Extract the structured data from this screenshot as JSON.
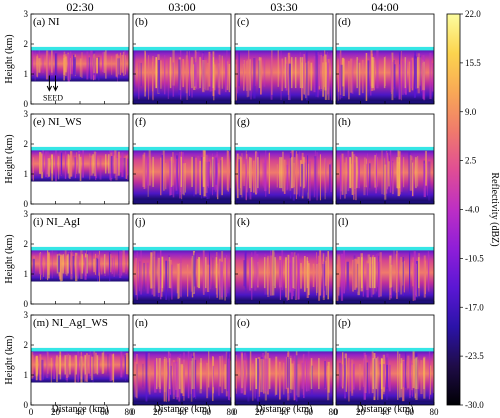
{
  "figure": {
    "times": [
      "02:30",
      "03:00",
      "03:30",
      "04:00"
    ],
    "y_label": "Height (km)",
    "x_label": "Distance (km)",
    "seed_label": "SEED",
    "colorbar_label": "Reflectivity (dBZ)"
  },
  "chart_data": {
    "type": "heatmap",
    "rows": [
      "NI",
      "NI_WS",
      "NI_AgI",
      "NI_AgI_WS"
    ],
    "columns": [
      "02:30",
      "03:00",
      "03:30",
      "04:00"
    ],
    "panels": [
      {
        "letter": "(a)",
        "label": "(a) NI",
        "row": 0,
        "col": 0
      },
      {
        "letter": "(b)",
        "label": "(b)",
        "row": 0,
        "col": 1
      },
      {
        "letter": "(c)",
        "label": "(c)",
        "row": 0,
        "col": 2
      },
      {
        "letter": "(d)",
        "label": "(d)",
        "row": 0,
        "col": 3
      },
      {
        "letter": "(e)",
        "label": "(e) NI_WS",
        "row": 1,
        "col": 0
      },
      {
        "letter": "(f)",
        "label": "(f)",
        "row": 1,
        "col": 1
      },
      {
        "letter": "(g)",
        "label": "(g)",
        "row": 1,
        "col": 2
      },
      {
        "letter": "(h)",
        "label": "(h)",
        "row": 1,
        "col": 3
      },
      {
        "letter": "(i)",
        "label": "(i) NI_AgI",
        "row": 2,
        "col": 0
      },
      {
        "letter": "(j)",
        "label": "(j)",
        "row": 2,
        "col": 1
      },
      {
        "letter": "(k)",
        "label": "(k)",
        "row": 2,
        "col": 2
      },
      {
        "letter": "(l)",
        "label": "(l)",
        "row": 2,
        "col": 3
      },
      {
        "letter": "(m)",
        "label": "(m) NI_AgI_WS",
        "row": 3,
        "col": 0
      },
      {
        "letter": "(n)",
        "label": "(n)",
        "row": 3,
        "col": 1
      },
      {
        "letter": "(o)",
        "label": "(o)",
        "row": 3,
        "col": 2
      },
      {
        "letter": "(p)",
        "label": "(p)",
        "row": 3,
        "col": 3
      }
    ],
    "x_ticks": [
      0,
      20,
      40,
      60,
      80
    ],
    "y_ticks": [
      0,
      1,
      2,
      3
    ],
    "xlim": [
      0,
      80
    ],
    "ylim": [
      0,
      3
    ],
    "cloud_base_km": [
      0.75,
      0.1,
      0.1,
      0.1,
      0.75,
      0.15,
      0.1,
      0.1,
      0.75,
      0.1,
      0.1,
      0.1,
      0.75,
      0.1,
      0.1,
      0.1
    ],
    "cloud_top_km": 1.82,
    "seed_distance_km": [
      15,
      20
    ],
    "colorbar": {
      "min": -30.0,
      "max": 22.0,
      "ticks": [
        22.0,
        15.5,
        9.0,
        2.5,
        -4.0,
        -10.5,
        -17.0,
        -23.5,
        -30.0
      ],
      "colors": [
        "#000004",
        "#1f0c48",
        "#2b13a8",
        "#5b17d4",
        "#8f1ed8",
        "#bd2fc4",
        "#e04d95",
        "#f07a6c",
        "#f8a856",
        "#fcd44e",
        "#fcfd9f"
      ]
    },
    "top_layer_color": "#35e6e6"
  }
}
